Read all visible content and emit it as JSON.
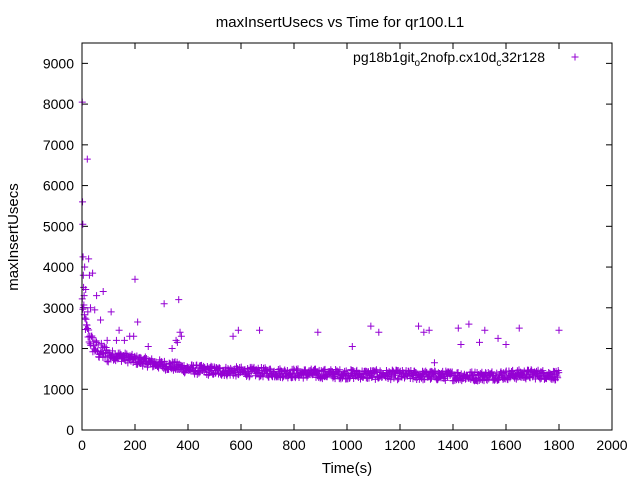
{
  "chart_data": {
    "type": "scatter",
    "title": "maxInsertUsecs vs Time for qr100.L1",
    "xlabel": "Time(s)",
    "ylabel": "maxInsertUsecs",
    "xlim": [
      0,
      2000
    ],
    "ylim": [
      0,
      9500
    ],
    "xticks": [
      0,
      200,
      400,
      600,
      800,
      1000,
      1200,
      1400,
      1600,
      1800,
      2000
    ],
    "yticks": [
      0,
      1000,
      2000,
      3000,
      4000,
      5000,
      6000,
      7000,
      8000,
      9000
    ],
    "grid": false,
    "legend_position": "top-right",
    "marker": "plus",
    "series": [
      {
        "name": "pg18b1git_o2nofp.cx10d_c32r128",
        "legend_parts": [
          {
            "text": "pg18b1git",
            "sub": false
          },
          {
            "text": "o",
            "sub": true
          },
          {
            "text": "2nofp.cx10d",
            "sub": false
          },
          {
            "text": "c",
            "sub": true
          },
          {
            "text": "32r128",
            "sub": false
          }
        ],
        "color": "#9400d3",
        "outliers": [
          [
            1,
            8050
          ],
          [
            2,
            5600
          ],
          [
            3,
            5050
          ],
          [
            4,
            4250
          ],
          [
            5,
            3800
          ],
          [
            6,
            3500
          ],
          [
            8,
            3300
          ],
          [
            10,
            4000
          ],
          [
            14,
            3450
          ],
          [
            20,
            6650
          ],
          [
            22,
            2900
          ],
          [
            25,
            4200
          ],
          [
            28,
            3800
          ],
          [
            32,
            3000
          ],
          [
            40,
            3850
          ],
          [
            48,
            2950
          ],
          [
            55,
            3300
          ],
          [
            70,
            2700
          ],
          [
            80,
            3400
          ],
          [
            95,
            2200
          ],
          [
            110,
            2900
          ],
          [
            130,
            2200
          ],
          [
            140,
            2450
          ],
          [
            160,
            2200
          ],
          [
            180,
            2300
          ],
          [
            195,
            2300
          ],
          [
            200,
            3700
          ],
          [
            210,
            2650
          ],
          [
            250,
            2050
          ],
          [
            310,
            3100
          ],
          [
            340,
            2000
          ],
          [
            355,
            2200
          ],
          [
            360,
            2150
          ],
          [
            365,
            3200
          ],
          [
            370,
            2400
          ],
          [
            375,
            2300
          ],
          [
            570,
            2300
          ],
          [
            590,
            2450
          ],
          [
            670,
            2450
          ],
          [
            890,
            2400
          ],
          [
            1020,
            2050
          ],
          [
            1090,
            2550
          ],
          [
            1120,
            2400
          ],
          [
            1270,
            2550
          ],
          [
            1290,
            2400
          ],
          [
            1310,
            2450
          ],
          [
            1330,
            1650
          ],
          [
            1420,
            2500
          ],
          [
            1430,
            2100
          ],
          [
            1460,
            2600
          ],
          [
            1500,
            2150
          ],
          [
            1520,
            2450
          ],
          [
            1570,
            2250
          ],
          [
            1600,
            2100
          ],
          [
            1650,
            2500
          ],
          [
            1800,
            2450
          ]
        ],
        "trend": [
          [
            0,
            3200
          ],
          [
            10,
            2700
          ],
          [
            20,
            2400
          ],
          [
            40,
            2100
          ],
          [
            60,
            1950
          ],
          [
            100,
            1850
          ],
          [
            150,
            1800
          ],
          [
            200,
            1720
          ],
          [
            250,
            1660
          ],
          [
            300,
            1600
          ],
          [
            350,
            1560
          ],
          [
            400,
            1500
          ],
          [
            450,
            1470
          ],
          [
            500,
            1450
          ],
          [
            600,
            1430
          ],
          [
            700,
            1410
          ],
          [
            800,
            1390
          ],
          [
            900,
            1380
          ],
          [
            1000,
            1370
          ],
          [
            1100,
            1360
          ],
          [
            1200,
            1350
          ],
          [
            1300,
            1340
          ],
          [
            1400,
            1330
          ],
          [
            1500,
            1320
          ],
          [
            1600,
            1350
          ],
          [
            1700,
            1370
          ],
          [
            1800,
            1340
          ]
        ]
      }
    ]
  }
}
